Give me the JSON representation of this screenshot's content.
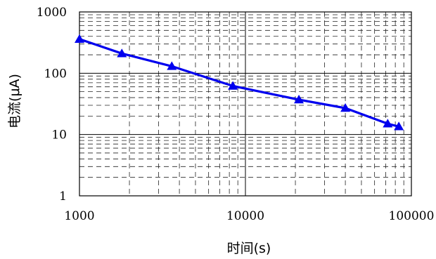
{
  "chart_data": {
    "type": "line",
    "xlabel": "时间(s)",
    "ylabel": "电流(μA)",
    "x_scale": "log",
    "y_scale": "log",
    "xlim": [
      1000,
      100000
    ],
    "ylim": [
      1,
      1000
    ],
    "x_ticks": [
      "1000",
      "10000",
      "100000"
    ],
    "y_ticks": [
      "1",
      "10",
      "100",
      "1000"
    ],
    "grid": true,
    "grid_style": "dashed minor, solid at decades",
    "series": [
      {
        "color": "#0000ee",
        "marker": "triangle",
        "x": [
          1000,
          1800,
          3600,
          8400,
          21000,
          40000,
          72000,
          84000
        ],
        "y": [
          360,
          210,
          130,
          62,
          37,
          27,
          15,
          13.5
        ]
      }
    ]
  }
}
